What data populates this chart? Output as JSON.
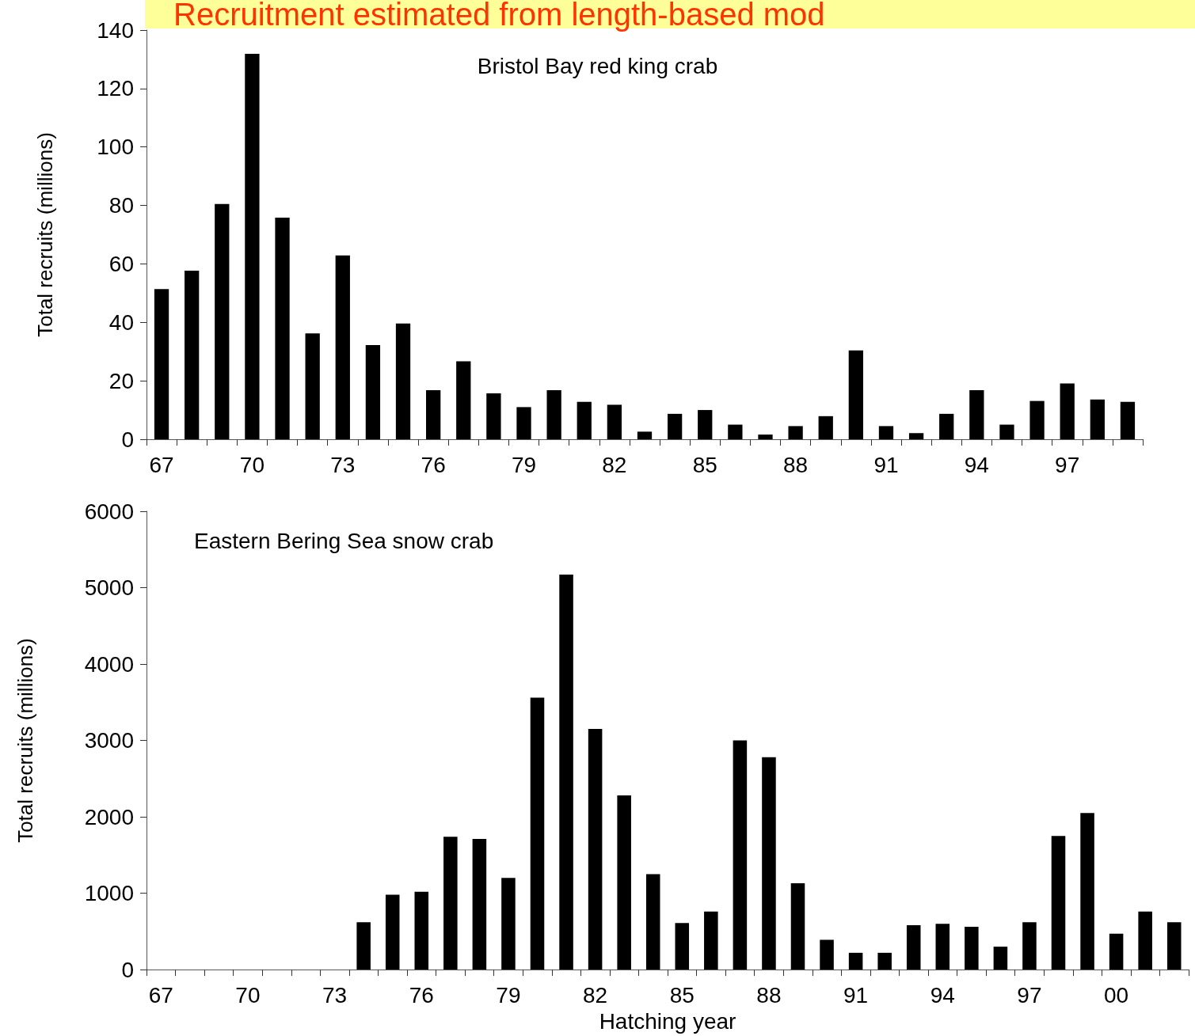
{
  "chart_data": [
    {
      "type": "bar",
      "title": "Bristol Bay red king crab",
      "annotations": [
        "Recruitment estimated from length-based mod"
      ],
      "ylabel": "Total recruits (millions)",
      "categories": [
        "67",
        null,
        null,
        "70",
        null,
        null,
        "73",
        null,
        null,
        "76",
        null,
        null,
        "79",
        null,
        null,
        "82",
        null,
        null,
        "85",
        null,
        null,
        "88",
        null,
        null,
        "91",
        null,
        null,
        "94",
        null,
        null,
        "97",
        null,
        null
      ],
      "values": [
        51.4,
        57.7,
        80.5,
        131.9,
        75.8,
        36.2,
        62.9,
        32.2,
        39.6,
        16.8,
        26.7,
        15.7,
        11.0,
        16.8,
        12.8,
        11.8,
        2.6,
        8.7,
        10.0,
        5.0,
        1.6,
        4.5,
        7.9,
        30.4,
        4.5,
        2.1,
        8.7,
        16.8,
        5.0,
        13.1,
        19.1,
        13.6,
        12.8
      ],
      "color": "#000000",
      "ylim": [
        0,
        140
      ],
      "yticks": [
        0,
        20,
        40,
        60,
        80,
        100,
        120,
        140
      ],
      "grid": false
    },
    {
      "type": "bar",
      "title": "Eastern Bering Sea snow crab",
      "ylabel": "Total recruits (millions)",
      "xlabel": "Hatching year",
      "categories": [
        "67",
        null,
        null,
        "70",
        null,
        null,
        "73",
        null,
        null,
        "76",
        null,
        null,
        "79",
        null,
        null,
        "82",
        null,
        null,
        "85",
        null,
        null,
        "88",
        null,
        null,
        "91",
        null,
        null,
        "94",
        null,
        null,
        "97",
        null,
        null,
        "00",
        null,
        null
      ],
      "values": [
        null,
        null,
        null,
        null,
        null,
        null,
        null,
        620,
        980,
        1020,
        1740,
        1710,
        1200,
        3560,
        5170,
        3150,
        2280,
        1250,
        610,
        760,
        3000,
        2780,
        1130,
        390,
        220,
        220,
        580,
        600,
        560,
        300,
        620,
        1750,
        2050,
        470,
        760,
        620
      ],
      "color": "#000000",
      "ylim": [
        0,
        6000
      ],
      "yticks": [
        0,
        1000,
        2000,
        3000,
        4000,
        5000,
        6000
      ],
      "grid": false
    }
  ]
}
